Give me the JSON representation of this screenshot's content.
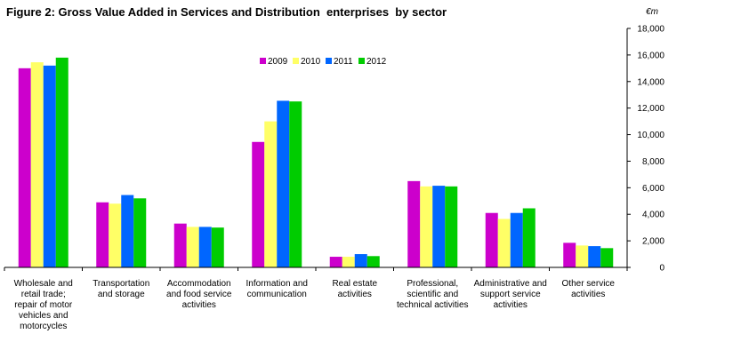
{
  "chart_data": {
    "type": "bar",
    "title": "Figure 2: Gross Value Added in Services and Distribution  enterprises  by sector",
    "unit": "€m",
    "categories": [
      [
        "Wholesale and",
        "retail trade;",
        "repair of motor",
        "vehicles and",
        "motorcycles"
      ],
      [
        "Transportation",
        "and storage"
      ],
      [
        "Accommodation",
        "and food service",
        "activities"
      ],
      [
        "Information and",
        "communication"
      ],
      [
        "Real estate",
        "activities"
      ],
      [
        "Professional,",
        "scientific and",
        "technical activities"
      ],
      [
        "Administrative and",
        "support service",
        "activities"
      ],
      [
        "Other service",
        "activities"
      ]
    ],
    "series": [
      {
        "name": "2009",
        "color": "#cc00cc",
        "values": [
          15000,
          4900,
          3300,
          9450,
          800,
          6500,
          4100,
          1850
        ]
      },
      {
        "name": "2010",
        "color": "#ffff66",
        "values": [
          15450,
          4800,
          3050,
          11000,
          800,
          6100,
          3650,
          1650
        ]
      },
      {
        "name": "2011",
        "color": "#0066ff",
        "values": [
          15200,
          5450,
          3050,
          12550,
          1000,
          6150,
          4100,
          1600
        ]
      },
      {
        "name": "2012",
        "color": "#00cc00",
        "values": [
          15800,
          5200,
          3000,
          12500,
          850,
          6100,
          4450,
          1450
        ]
      }
    ],
    "y_ticks": [
      "0",
      "2,000",
      "4,000",
      "6,000",
      "8,000",
      "10,000",
      "12,000",
      "14,000",
      "16,000",
      "18,000"
    ],
    "ylim": [
      0,
      18000
    ],
    "y_axis_side": "right",
    "legend_position": "top-center",
    "grid": false
  }
}
